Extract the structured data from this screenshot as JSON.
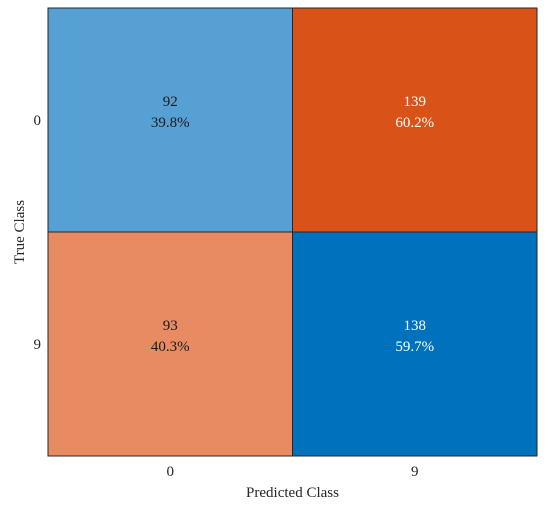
{
  "chart_data": {
    "type": "heatmap",
    "title": "",
    "xlabel": "Predicted Class",
    "ylabel": "True Class",
    "x_categories": [
      "0",
      "9"
    ],
    "y_categories": [
      "0",
      "9"
    ],
    "cells": [
      [
        {
          "count": "92",
          "percent": "39.8%",
          "fill": "#56a0d3",
          "text_color": "#1a1a1a"
        },
        {
          "count": "139",
          "percent": "60.2%",
          "fill": "#d95319",
          "text_color": "#ffffff"
        }
      ],
      [
        {
          "count": "93",
          "percent": "40.3%",
          "fill": "#e88b62",
          "text_color": "#1a1a1a"
        },
        {
          "count": "138",
          "percent": "59.7%",
          "fill": "#0072bd",
          "text_color": "#ffffff"
        }
      ]
    ],
    "grid": true,
    "legend": "none"
  }
}
